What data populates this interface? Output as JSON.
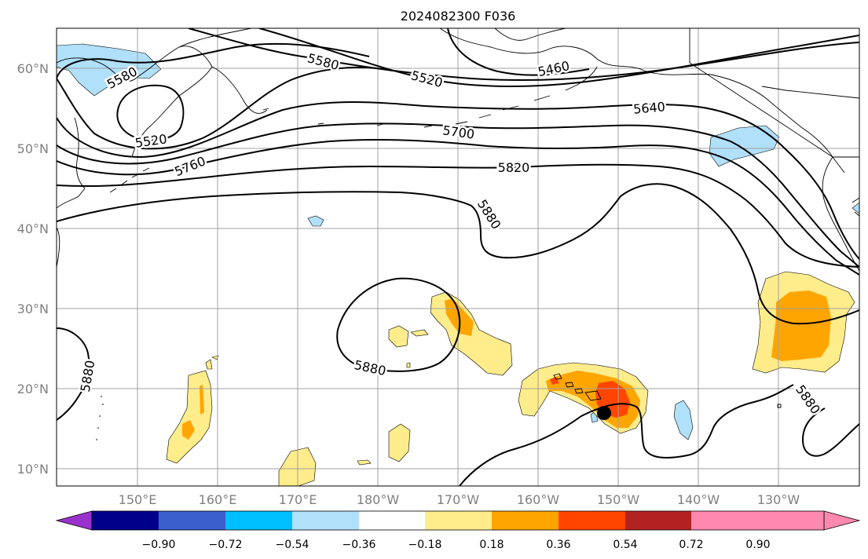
{
  "title": "2024082300 F036",
  "lat_labels": [
    "60°N",
    "50°N",
    "40°N",
    "30°N",
    "20°N",
    "10°N"
  ],
  "lon_labels": [
    "150°E",
    "160°E",
    "170°E",
    "180°W",
    "170°W",
    "160°W",
    "150°W",
    "140°W",
    "130°W"
  ],
  "colorbar": {
    "colors": [
      "#9932cc",
      "#00008b",
      "#3a5fcd",
      "#00bfff",
      "#b0e0fa",
      "#ffffff",
      "#ffec8b",
      "#ffa500",
      "#ff4500",
      "#b22222",
      "#ff88b0"
    ],
    "tick_labels": [
      "−0.90",
      "−0.72",
      "−0.54",
      "−0.36",
      "−0.18",
      "0.18",
      "0.36",
      "0.54",
      "0.72",
      "0.90"
    ]
  },
  "contour_labels": {
    "c5580_a": "5580",
    "c5580_b": "5580",
    "c5520_a": "5520",
    "c5520_b": "5520",
    "c5460": "5460",
    "c5640": "5640",
    "c5700": "5700",
    "c5760": "5760",
    "c5820": "5820",
    "c5880_a": "5880",
    "c5880_b": "5880",
    "c5880_c": "5880",
    "c5880_d": "5880"
  },
  "storm_marker": {
    "lon": -151.5,
    "lat": 17.0
  },
  "fill_colors": {
    "light_yellow": "#ffec8b",
    "orange": "#ffa500",
    "red_orange": "#ff4500",
    "light_blue": "#b0e0fa"
  }
}
